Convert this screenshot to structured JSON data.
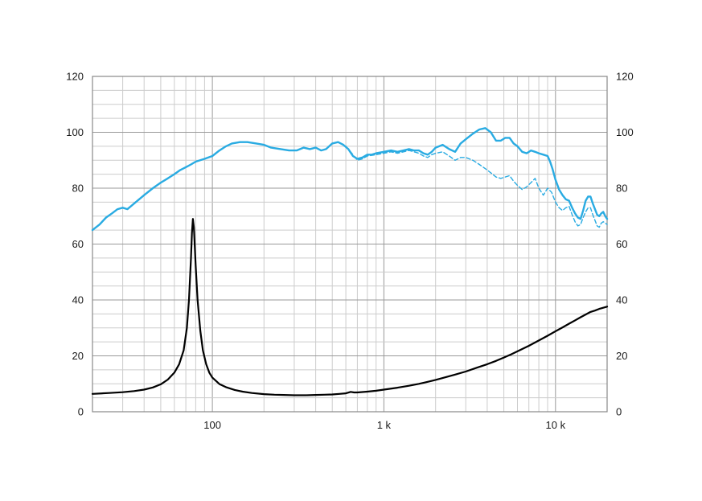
{
  "chart_data": {
    "type": "line",
    "title": "",
    "xlabel": "",
    "ylabel": "",
    "x_scale": "log",
    "x_range": [
      20,
      20000
    ],
    "y_range": [
      0,
      120
    ],
    "y_minor_step": 5,
    "y_major_step": 20,
    "grid": "on",
    "legend": "none",
    "x_ticks": [
      {
        "value": 100,
        "label": "100"
      },
      {
        "value": 1000,
        "label": "1 k"
      },
      {
        "value": 10000,
        "label": "10 k"
      }
    ],
    "y_ticks": [
      {
        "value": 0,
        "label": "0"
      },
      {
        "value": 20,
        "label": "20"
      },
      {
        "value": 40,
        "label": "40"
      },
      {
        "value": 60,
        "label": "60"
      },
      {
        "value": 80,
        "label": "80"
      },
      {
        "value": 100,
        "label": "100"
      },
      {
        "value": 120,
        "label": "120"
      }
    ],
    "colors": {
      "spl": "#29abe2",
      "impedance": "#000000",
      "grid_minor": "#cccccc",
      "grid_major": "#999999",
      "axis": "#888888",
      "background": "#ffffff"
    },
    "series": [
      {
        "name": "spl-on-axis",
        "style": "solid",
        "color": "#29abe2",
        "width": 2.4,
        "dash": "",
        "points": [
          [
            20,
            65
          ],
          [
            22,
            67
          ],
          [
            24,
            69.5
          ],
          [
            26,
            71
          ],
          [
            28,
            72.5
          ],
          [
            30,
            73
          ],
          [
            32,
            72.5
          ],
          [
            35,
            74.5
          ],
          [
            40,
            77.5
          ],
          [
            45,
            80
          ],
          [
            50,
            82
          ],
          [
            55,
            83.5
          ],
          [
            60,
            85
          ],
          [
            65,
            86.5
          ],
          [
            70,
            87.5
          ],
          [
            75,
            88.5
          ],
          [
            80,
            89.5
          ],
          [
            90,
            90.5
          ],
          [
            100,
            91.5
          ],
          [
            110,
            93.5
          ],
          [
            120,
            95
          ],
          [
            130,
            96
          ],
          [
            145,
            96.5
          ],
          [
            160,
            96.5
          ],
          [
            180,
            96
          ],
          [
            200,
            95.5
          ],
          [
            220,
            94.5
          ],
          [
            250,
            94
          ],
          [
            280,
            93.5
          ],
          [
            310,
            93.5
          ],
          [
            340,
            94.5
          ],
          [
            370,
            94
          ],
          [
            400,
            94.5
          ],
          [
            430,
            93.5
          ],
          [
            460,
            94
          ],
          [
            500,
            96
          ],
          [
            540,
            96.5
          ],
          [
            580,
            95.5
          ],
          [
            620,
            94
          ],
          [
            660,
            91.5
          ],
          [
            700,
            90.5
          ],
          [
            750,
            91
          ],
          [
            800,
            92
          ],
          [
            850,
            92
          ],
          [
            900,
            92.5
          ],
          [
            1000,
            93
          ],
          [
            1100,
            93.5
          ],
          [
            1200,
            93
          ],
          [
            1300,
            93.5
          ],
          [
            1400,
            94
          ],
          [
            1500,
            93.5
          ],
          [
            1600,
            93.5
          ],
          [
            1700,
            92.5
          ],
          [
            1800,
            92
          ],
          [
            1900,
            93
          ],
          [
            2000,
            94.5
          ],
          [
            2200,
            95.5
          ],
          [
            2400,
            94
          ],
          [
            2600,
            93
          ],
          [
            2800,
            96
          ],
          [
            3000,
            97.5
          ],
          [
            3300,
            99.5
          ],
          [
            3600,
            101
          ],
          [
            3900,
            101.5
          ],
          [
            4200,
            100
          ],
          [
            4500,
            97
          ],
          [
            4800,
            97
          ],
          [
            5100,
            98
          ],
          [
            5400,
            98
          ],
          [
            5700,
            96
          ],
          [
            6000,
            95
          ],
          [
            6400,
            93
          ],
          [
            6800,
            92.5
          ],
          [
            7200,
            93.5
          ],
          [
            7600,
            93
          ],
          [
            8000,
            92.5
          ],
          [
            8500,
            92
          ],
          [
            9000,
            91.5
          ],
          [
            9300,
            89.5
          ],
          [
            9600,
            87
          ],
          [
            10000,
            83
          ],
          [
            10500,
            79.5
          ],
          [
            11000,
            77.5
          ],
          [
            11500,
            76
          ],
          [
            12000,
            75.5
          ],
          [
            12500,
            73
          ],
          [
            13000,
            71
          ],
          [
            13500,
            69.5
          ],
          [
            14000,
            69
          ],
          [
            14500,
            72
          ],
          [
            15000,
            75.5
          ],
          [
            15500,
            77
          ],
          [
            16000,
            77
          ],
          [
            16500,
            74.5
          ],
          [
            17000,
            72.5
          ],
          [
            17500,
            70.5
          ],
          [
            18000,
            70
          ],
          [
            18500,
            71
          ],
          [
            19000,
            71.5
          ],
          [
            19500,
            70
          ],
          [
            20000,
            69
          ]
        ]
      },
      {
        "name": "spl-off-axis",
        "style": "dashed",
        "color": "#29abe2",
        "width": 1.4,
        "dash": "5 3",
        "points": [
          [
            600,
            95
          ],
          [
            650,
            92.5
          ],
          [
            700,
            90
          ],
          [
            750,
            90.5
          ],
          [
            800,
            91.5
          ],
          [
            900,
            92
          ],
          [
            1000,
            92.5
          ],
          [
            1100,
            93
          ],
          [
            1200,
            92.5
          ],
          [
            1300,
            93
          ],
          [
            1400,
            93.5
          ],
          [
            1500,
            93
          ],
          [
            1600,
            92.5
          ],
          [
            1700,
            91.5
          ],
          [
            1800,
            91
          ],
          [
            1900,
            92
          ],
          [
            2000,
            92.5
          ],
          [
            2200,
            93
          ],
          [
            2400,
            91.5
          ],
          [
            2600,
            90
          ],
          [
            2800,
            91
          ],
          [
            3000,
            91
          ],
          [
            3300,
            90
          ],
          [
            3600,
            88.5
          ],
          [
            3900,
            87
          ],
          [
            4200,
            85.5
          ],
          [
            4500,
            84
          ],
          [
            4800,
            83.5
          ],
          [
            5100,
            84
          ],
          [
            5400,
            84.5
          ],
          [
            5700,
            82.5
          ],
          [
            6000,
            81
          ],
          [
            6400,
            79.5
          ],
          [
            6800,
            80.5
          ],
          [
            7200,
            82
          ],
          [
            7600,
            83.5
          ],
          [
            8000,
            80
          ],
          [
            8500,
            77.5
          ],
          [
            9000,
            80
          ],
          [
            9500,
            78.5
          ],
          [
            10000,
            75
          ],
          [
            10500,
            73
          ],
          [
            11000,
            72
          ],
          [
            11500,
            73
          ],
          [
            12000,
            73.5
          ],
          [
            12500,
            70.5
          ],
          [
            13000,
            68
          ],
          [
            13500,
            66.5
          ],
          [
            14000,
            67
          ],
          [
            14500,
            69.5
          ],
          [
            15000,
            71.5
          ],
          [
            15500,
            73
          ],
          [
            16000,
            73
          ],
          [
            16500,
            70.5
          ],
          [
            17000,
            68.5
          ],
          [
            17500,
            66.5
          ],
          [
            18000,
            66
          ],
          [
            18500,
            67.5
          ],
          [
            19000,
            68
          ],
          [
            19500,
            67.5
          ],
          [
            20000,
            67
          ]
        ]
      },
      {
        "name": "impedance",
        "style": "solid",
        "color": "#000000",
        "width": 2.2,
        "dash": "",
        "points": [
          [
            20,
            6.4
          ],
          [
            25,
            6.7
          ],
          [
            30,
            7
          ],
          [
            35,
            7.4
          ],
          [
            40,
            7.9
          ],
          [
            45,
            8.7
          ],
          [
            50,
            9.8
          ],
          [
            55,
            11.5
          ],
          [
            60,
            14
          ],
          [
            64,
            17
          ],
          [
            68,
            22
          ],
          [
            71,
            30
          ],
          [
            73,
            40
          ],
          [
            75,
            55
          ],
          [
            76,
            64
          ],
          [
            77,
            69
          ],
          [
            78,
            66
          ],
          [
            80,
            52
          ],
          [
            82,
            40
          ],
          [
            85,
            29
          ],
          [
            88,
            22
          ],
          [
            92,
            17
          ],
          [
            96,
            14
          ],
          [
            100,
            12.2
          ],
          [
            110,
            9.9
          ],
          [
            120,
            8.8
          ],
          [
            135,
            7.8
          ],
          [
            150,
            7.2
          ],
          [
            170,
            6.7
          ],
          [
            200,
            6.3
          ],
          [
            230,
            6.1
          ],
          [
            260,
            6
          ],
          [
            300,
            5.9
          ],
          [
            350,
            5.9
          ],
          [
            400,
            6
          ],
          [
            450,
            6.1
          ],
          [
            500,
            6.2
          ],
          [
            550,
            6.4
          ],
          [
            600,
            6.6
          ],
          [
            640,
            7.1
          ],
          [
            670,
            6.9
          ],
          [
            700,
            6.9
          ],
          [
            800,
            7.2
          ],
          [
            900,
            7.5
          ],
          [
            1000,
            7.9
          ],
          [
            1200,
            8.6
          ],
          [
            1400,
            9.3
          ],
          [
            1600,
            10
          ],
          [
            1800,
            10.7
          ],
          [
            2000,
            11.4
          ],
          [
            2300,
            12.4
          ],
          [
            2600,
            13.3
          ],
          [
            3000,
            14.4
          ],
          [
            3500,
            15.8
          ],
          [
            4000,
            17
          ],
          [
            4500,
            18.2
          ],
          [
            5000,
            19.4
          ],
          [
            5500,
            20.5
          ],
          [
            6000,
            21.6
          ],
          [
            7000,
            23.6
          ],
          [
            8000,
            25.5
          ],
          [
            9000,
            27.2
          ],
          [
            10000,
            28.8
          ],
          [
            11000,
            30.2
          ],
          [
            12000,
            31.5
          ],
          [
            13000,
            32.7
          ],
          [
            14000,
            33.8
          ],
          [
            15000,
            34.8
          ],
          [
            16000,
            35.7
          ],
          [
            17000,
            36.2
          ],
          [
            18000,
            36.8
          ],
          [
            19000,
            37.2
          ],
          [
            20000,
            37.6
          ]
        ]
      }
    ]
  }
}
